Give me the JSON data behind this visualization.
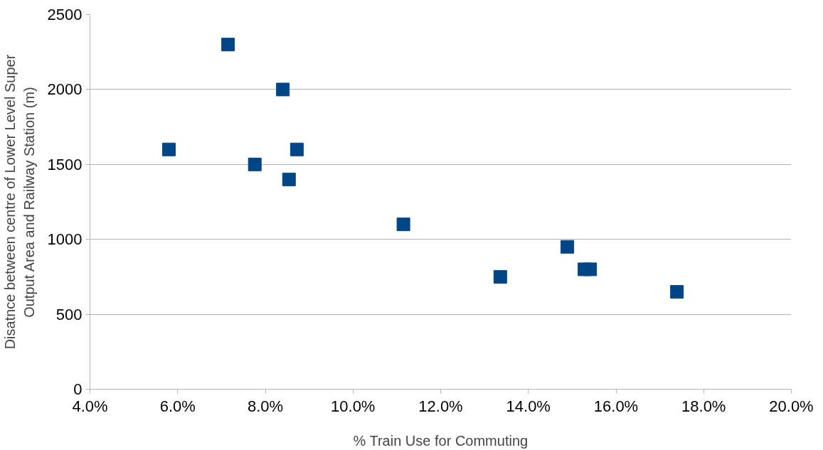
{
  "chart_data": {
    "type": "scatter",
    "xlabel": "% Train Use for Commuting",
    "ylabel": "Disatnce between centre of Lower Level Super Output Area and Railway Station (m)",
    "x": [
      5.8,
      7.15,
      7.76,
      8.4,
      8.54,
      8.72,
      11.15,
      13.36,
      14.89,
      15.28,
      15.41,
      17.39
    ],
    "series": [
      {
        "color": "#004586",
        "values": [
          1600,
          2300,
          1500,
          2000,
          1400,
          1600,
          1100,
          750,
          950,
          800,
          800,
          650
        ]
      }
    ],
    "xlim": [
      4,
      20
    ],
    "xticks": [
      {
        "value": 4,
        "label": "4.0%"
      },
      {
        "value": 6,
        "label": "6.0%"
      },
      {
        "value": 8,
        "label": "8.0%"
      },
      {
        "value": 10,
        "label": "10.0%"
      },
      {
        "value": 12,
        "label": "12.0%"
      },
      {
        "value": 14,
        "label": "14.0%"
      },
      {
        "value": 16,
        "label": "16.0%"
      },
      {
        "value": 18,
        "label": "18.0%"
      },
      {
        "value": 20,
        "label": "20.0%"
      }
    ],
    "ylim": [
      0,
      2500
    ],
    "yticks": [
      0,
      500,
      1000,
      1500,
      2000,
      2500
    ],
    "grid": "y",
    "marker": "square"
  }
}
